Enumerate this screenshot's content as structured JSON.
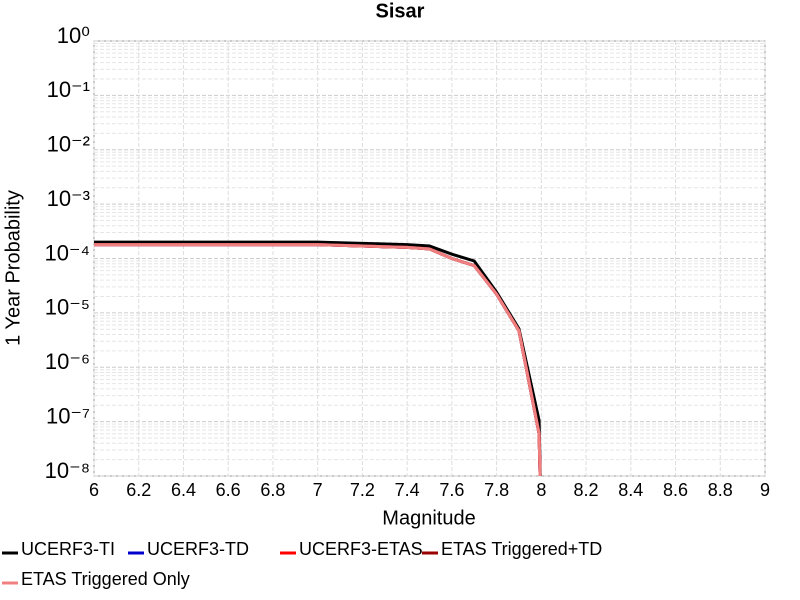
{
  "chart_data": {
    "type": "line",
    "title": "Sisar",
    "xlabel": "Magnitude",
    "ylabel": "1 Year Probability",
    "log_y": true,
    "grid": true,
    "xlim": [
      6,
      9
    ],
    "xticks": [
      6,
      6.2,
      6.4,
      6.6,
      6.8,
      7,
      7.2,
      7.4,
      7.6,
      7.8,
      8,
      8.2,
      8.4,
      8.6,
      8.8,
      9
    ],
    "ylim": [
      1e-08,
      1
    ],
    "yticks": [
      {
        "value": 1,
        "label": "10⁰"
      },
      {
        "value": 0.1,
        "label": "10⁻¹"
      },
      {
        "value": 0.01,
        "label": "10⁻²"
      },
      {
        "value": 0.001,
        "label": "10⁻³"
      },
      {
        "value": 0.0001,
        "label": "10⁻⁴"
      },
      {
        "value": 1e-05,
        "label": "10⁻⁵"
      },
      {
        "value": 1e-06,
        "label": "10⁻⁶"
      },
      {
        "value": 1e-07,
        "label": "10⁻⁷"
      },
      {
        "value": 1e-08,
        "label": "10⁻⁸"
      }
    ],
    "x": [
      6,
      6.5,
      7,
      7.2,
      7.4,
      7.5,
      7.6,
      7.7,
      7.8,
      7.9,
      7.99,
      8.0
    ],
    "series": [
      {
        "name": "UCERF3-TI",
        "color": "#000000",
        "values": [
          0.0002,
          0.0002,
          0.0002,
          0.00019,
          0.00018,
          0.00017,
          0.00012,
          9e-05,
          2.4e-05,
          5.1e-06,
          1.05e-07,
          1e-09
        ]
      },
      {
        "name": "UCERF3-TD",
        "color": "#0000cc",
        "values": [
          0.00018,
          0.00018,
          0.00018,
          0.00017,
          0.00016,
          0.00015,
          0.0001,
          7.4e-05,
          2.2e-05,
          4.7e-06,
          6e-08,
          1e-09
        ]
      },
      {
        "name": "UCERF3-ETAS",
        "color": "#ff0000",
        "values": [
          0.00018,
          0.00018,
          0.00018,
          0.00017,
          0.00016,
          0.00015,
          0.0001,
          7.4e-05,
          2.2e-05,
          4.7e-06,
          6e-08,
          1e-09
        ]
      },
      {
        "name": "ETAS Triggered+TD",
        "color": "#990000",
        "values": [
          0.00018,
          0.00018,
          0.00018,
          0.00017,
          0.00016,
          0.00015,
          0.0001,
          7.4e-05,
          2.2e-05,
          4.7e-06,
          6e-08,
          1e-09
        ]
      },
      {
        "name": "ETAS Triggered Only",
        "color": "#f08080",
        "values": [
          0.00018,
          0.00018,
          0.00018,
          0.00017,
          0.00016,
          0.00015,
          0.0001,
          7.4e-05,
          2.2e-05,
          4.7e-06,
          6e-08,
          1e-09
        ]
      }
    ]
  }
}
